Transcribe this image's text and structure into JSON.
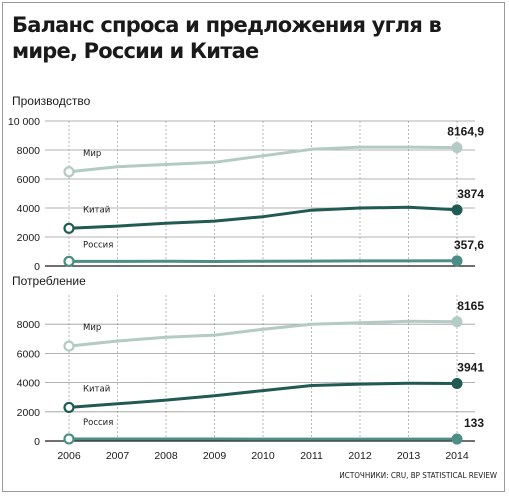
{
  "title": "Баланс спроса и предложения угля в мире, России и Китае",
  "source": "ИСТОЧНИКИ: CRU, BP STATISTICAL REVIEW",
  "colors": {
    "world": "#b3cbc4",
    "china": "#205a52",
    "russia": "#4e8d85",
    "grid": "#9a9a9a",
    "axis": "#1a1a1a"
  },
  "chart_data": [
    {
      "type": "line",
      "title": "Производство",
      "x": [
        2006,
        2007,
        2008,
        2009,
        2010,
        2011,
        2012,
        2013,
        2014
      ],
      "ylim": [
        0,
        10000
      ],
      "yticks": [
        "0",
        "2000",
        "4000",
        "6000",
        "8000",
        "10 000"
      ],
      "grid": true,
      "series": [
        {
          "key": "world",
          "name": "Мир",
          "values": [
            6500,
            6850,
            7000,
            7150,
            7600,
            8050,
            8200,
            8200,
            8164.9
          ],
          "end_label": "8164,9"
        },
        {
          "key": "china",
          "name": "Китай",
          "values": [
            2600,
            2750,
            2950,
            3100,
            3400,
            3850,
            4000,
            4050,
            3874
          ],
          "end_label": "3874"
        },
        {
          "key": "russia",
          "name": "Россия",
          "values": [
            320,
            320,
            330,
            310,
            330,
            335,
            350,
            355,
            357.6
          ],
          "end_label": "357,6"
        }
      ]
    },
    {
      "type": "line",
      "title": "Потребление",
      "x": [
        2006,
        2007,
        2008,
        2009,
        2010,
        2011,
        2012,
        2013,
        2014
      ],
      "ylim": [
        0,
        10000
      ],
      "yticks": [
        "0",
        "2000",
        "4000",
        "6000",
        "8000"
      ],
      "grid": true,
      "series": [
        {
          "key": "world",
          "name": "Мир",
          "values": [
            6500,
            6850,
            7100,
            7250,
            7650,
            8000,
            8100,
            8200,
            8165
          ],
          "end_label": "8165"
        },
        {
          "key": "china",
          "name": "Китай",
          "values": [
            2300,
            2550,
            2800,
            3100,
            3450,
            3800,
            3900,
            3950,
            3941
          ],
          "end_label": "3941"
        },
        {
          "key": "russia",
          "name": "Россия",
          "values": [
            140,
            140,
            140,
            135,
            130,
            130,
            130,
            130,
            133
          ],
          "end_label": "133"
        }
      ]
    }
  ]
}
